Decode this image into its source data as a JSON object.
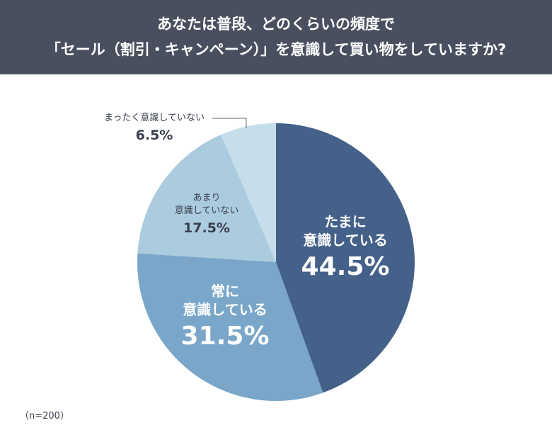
{
  "header": {
    "title_line1": "あなたは普段、どのくらいの頻度で",
    "title_line2": "「セール（割引・キャンペーン）」を意識して買い物をしていますか?"
  },
  "chart_data": {
    "type": "pie",
    "title": "あなたは普段、どのくらいの頻度で「セール（割引・キャンペーン）」を意識して買い物をしていますか?",
    "start": "12 o'clock, clockwise",
    "slices": [
      {
        "label_line1": "たまに",
        "label_line2": "意識している",
        "value": 44.5,
        "value_label": "44.5%",
        "color": "#44618a"
      },
      {
        "label_line1": "常に",
        "label_line2": "意識している",
        "value": 31.5,
        "value_label": "31.5%",
        "color": "#7aa7c9"
      },
      {
        "label_line1": "あまり",
        "label_line2": "意識していない",
        "value": 17.5,
        "value_label": "17.5%",
        "color": "#abcbde"
      },
      {
        "label_line1": "まったく意識していない",
        "label_line2": "",
        "value": 6.5,
        "value_label": "6.5%",
        "color": "#c6deec"
      }
    ]
  },
  "note": "（n=200）"
}
